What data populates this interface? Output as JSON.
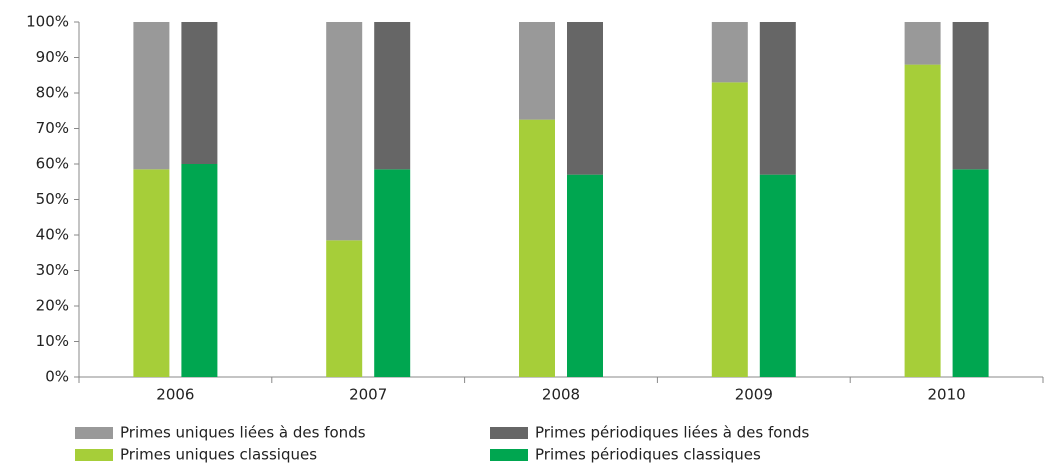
{
  "chart_data": {
    "type": "stacked_bar",
    "categories": [
      "2006",
      "2007",
      "2008",
      "2009",
      "2010"
    ],
    "series": [
      {
        "name": "Primes uniques classiques",
        "color": "#a6ce39",
        "stack": 0,
        "values": [
          58.5,
          38.5,
          72.5,
          83,
          88
        ]
      },
      {
        "name": "Primes uniques liées à des fonds",
        "color": "#999999",
        "stack": 0,
        "values": [
          41.5,
          61.5,
          27.5,
          17,
          12
        ]
      },
      {
        "name": "Primes périodiques classiques",
        "color": "#00a650",
        "stack": 1,
        "values": [
          60,
          58.5,
          57,
          57,
          58.5
        ]
      },
      {
        "name": "Primes périodiques liées à des fonds",
        "color": "#666666",
        "stack": 1,
        "values": [
          40,
          41.5,
          43,
          43,
          41.5
        ]
      }
    ],
    "ylim": [
      0,
      100
    ],
    "yticks": [
      {
        "value": 0,
        "label": "0%"
      },
      {
        "value": 10,
        "label": "10%"
      },
      {
        "value": 20,
        "label": "20%"
      },
      {
        "value": 30,
        "label": "30%"
      },
      {
        "value": 40,
        "label": "40%"
      },
      {
        "value": 50,
        "label": "50%"
      },
      {
        "value": 60,
        "label": "60%"
      },
      {
        "value": 70,
        "label": "70%"
      },
      {
        "value": 80,
        "label": "80%"
      },
      {
        "value": 90,
        "label": "90%"
      },
      {
        "value": 100,
        "label": "100%"
      }
    ],
    "grid": false
  }
}
